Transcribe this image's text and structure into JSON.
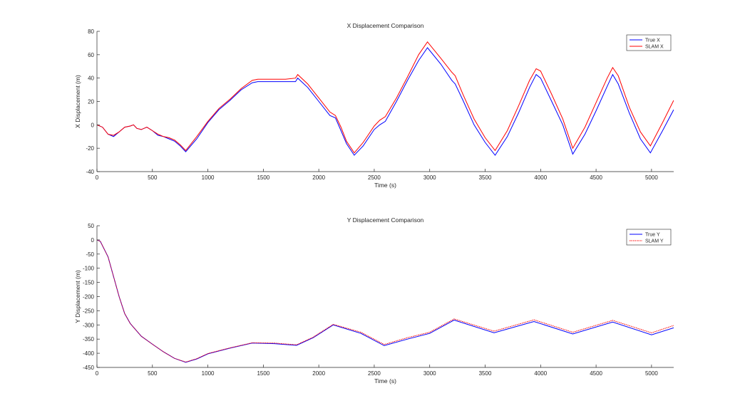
{
  "chart_data": [
    {
      "type": "line",
      "title": "X Displacement Comparison",
      "xlabel": "Time (s)",
      "ylabel": "X Displacement (m)",
      "xlim": [
        0,
        5200
      ],
      "ylim": [
        -40,
        80
      ],
      "xticks": [
        0,
        500,
        1000,
        1500,
        2000,
        2500,
        3000,
        3500,
        4000,
        4500,
        5000
      ],
      "yticks": [
        -40,
        -20,
        0,
        20,
        40,
        60,
        80
      ],
      "legend_position": "top-right",
      "series": [
        {
          "name": "True X",
          "color": "#0000ff",
          "x": [
            0,
            50,
            100,
            150,
            200,
            250,
            300,
            330,
            360,
            400,
            450,
            500,
            550,
            600,
            650,
            700,
            750,
            800,
            900,
            1000,
            1100,
            1200,
            1300,
            1400,
            1450,
            1500,
            1600,
            1700,
            1790,
            1810,
            1900,
            2000,
            2100,
            2150,
            2200,
            2250,
            2320,
            2400,
            2500,
            2550,
            2600,
            2700,
            2800,
            2900,
            2980,
            3100,
            3200,
            3230,
            3300,
            3400,
            3500,
            3590,
            3700,
            3800,
            3900,
            3960,
            4000,
            4100,
            4200,
            4290,
            4400,
            4500,
            4600,
            4650,
            4700,
            4800,
            4900,
            4990,
            5100,
            5200
          ],
          "y": [
            0,
            -2,
            -8,
            -10,
            -6,
            -2,
            -1,
            0,
            -3,
            -4,
            -2,
            -5,
            -9,
            -10,
            -12,
            -14,
            -18,
            -23,
            -12,
            2,
            13,
            21,
            30,
            36,
            37,
            37,
            37,
            37,
            37,
            40,
            32,
            20,
            8,
            6,
            -5,
            -16,
            -26,
            -18,
            -4,
            0,
            3,
            20,
            38,
            55,
            66,
            52,
            38,
            35,
            21,
            0,
            -15,
            -26,
            -10,
            10,
            32,
            43,
            40,
            20,
            0,
            -25,
            -8,
            12,
            33,
            43,
            35,
            10,
            -12,
            -24,
            -5,
            13
          ]
        },
        {
          "name": "SLAM X",
          "color": "#ff0000",
          "x": [
            0,
            50,
            100,
            150,
            200,
            250,
            300,
            330,
            360,
            400,
            450,
            500,
            550,
            600,
            650,
            700,
            750,
            800,
            900,
            1000,
            1100,
            1200,
            1300,
            1400,
            1450,
            1500,
            1600,
            1700,
            1790,
            1810,
            1900,
            2000,
            2100,
            2150,
            2200,
            2250,
            2320,
            2400,
            2500,
            2550,
            2600,
            2700,
            2800,
            2900,
            2980,
            3100,
            3200,
            3230,
            3300,
            3400,
            3500,
            3590,
            3700,
            3800,
            3900,
            3960,
            4000,
            4100,
            4200,
            4290,
            4400,
            4500,
            4600,
            4650,
            4700,
            4800,
            4900,
            4990,
            5100,
            5200
          ],
          "y": [
            0,
            -2,
            -8,
            -9,
            -6,
            -2,
            -1,
            0,
            -3,
            -4,
            -2,
            -5,
            -8,
            -10,
            -11,
            -13,
            -17,
            -22,
            -10,
            3,
            14,
            22,
            31,
            38,
            39,
            39,
            39,
            39,
            40,
            43,
            35,
            23,
            11,
            8,
            -2,
            -14,
            -24,
            -15,
            -1,
            4,
            7,
            23,
            41,
            60,
            71,
            57,
            45,
            42,
            26,
            5,
            -11,
            -22,
            -5,
            16,
            38,
            48,
            46,
            26,
            5,
            -20,
            -2,
            19,
            40,
            49,
            42,
            15,
            -6,
            -18,
            2,
            21
          ]
        }
      ]
    },
    {
      "type": "line",
      "title": "Y Displacement Comparison",
      "xlabel": "Time (s)",
      "ylabel": "Y Displacement (m)",
      "xlim": [
        0,
        5200
      ],
      "ylim": [
        -450,
        50
      ],
      "xticks": [
        0,
        500,
        1000,
        1500,
        2000,
        2500,
        3000,
        3500,
        4000,
        4500,
        5000
      ],
      "yticks": [
        -450,
        -400,
        -350,
        -300,
        -250,
        -200,
        -150,
        -100,
        -50,
        0,
        50
      ],
      "legend_position": "top-right",
      "series": [
        {
          "name": "True Y",
          "color": "#0000ff",
          "x": [
            0,
            30,
            100,
            200,
            250,
            300,
            400,
            500,
            600,
            700,
            800,
            900,
            1000,
            1200,
            1400,
            1600,
            1800,
            1950,
            2130,
            2380,
            2590,
            2800,
            3000,
            3220,
            3580,
            3940,
            4290,
            4650,
            5000,
            5200
          ],
          "y": [
            0,
            -5,
            -60,
            -200,
            -260,
            -295,
            -340,
            -368,
            -395,
            -418,
            -432,
            -420,
            -402,
            -382,
            -364,
            -366,
            -372,
            -345,
            -300,
            -330,
            -373,
            -350,
            -330,
            -283,
            -328,
            -288,
            -332,
            -290,
            -335,
            -310
          ],
          "style": "solid"
        },
        {
          "name": "SLAM Y",
          "color": "#ff0000",
          "x": [
            0,
            30,
            100,
            200,
            250,
            300,
            400,
            500,
            600,
            700,
            800,
            900,
            1000,
            1200,
            1400,
            1600,
            1800,
            1950,
            2130,
            2380,
            2590,
            2800,
            3000,
            3220,
            3580,
            3940,
            4290,
            4650,
            5000,
            5200
          ],
          "y": [
            0,
            -5,
            -60,
            -200,
            -260,
            -295,
            -340,
            -368,
            -395,
            -418,
            -431,
            -419,
            -401,
            -381,
            -363,
            -364,
            -370,
            -343,
            -298,
            -326,
            -369,
            -345,
            -326,
            -279,
            -322,
            -282,
            -326,
            -284,
            -328,
            -302
          ],
          "style": "dotted"
        }
      ]
    }
  ]
}
